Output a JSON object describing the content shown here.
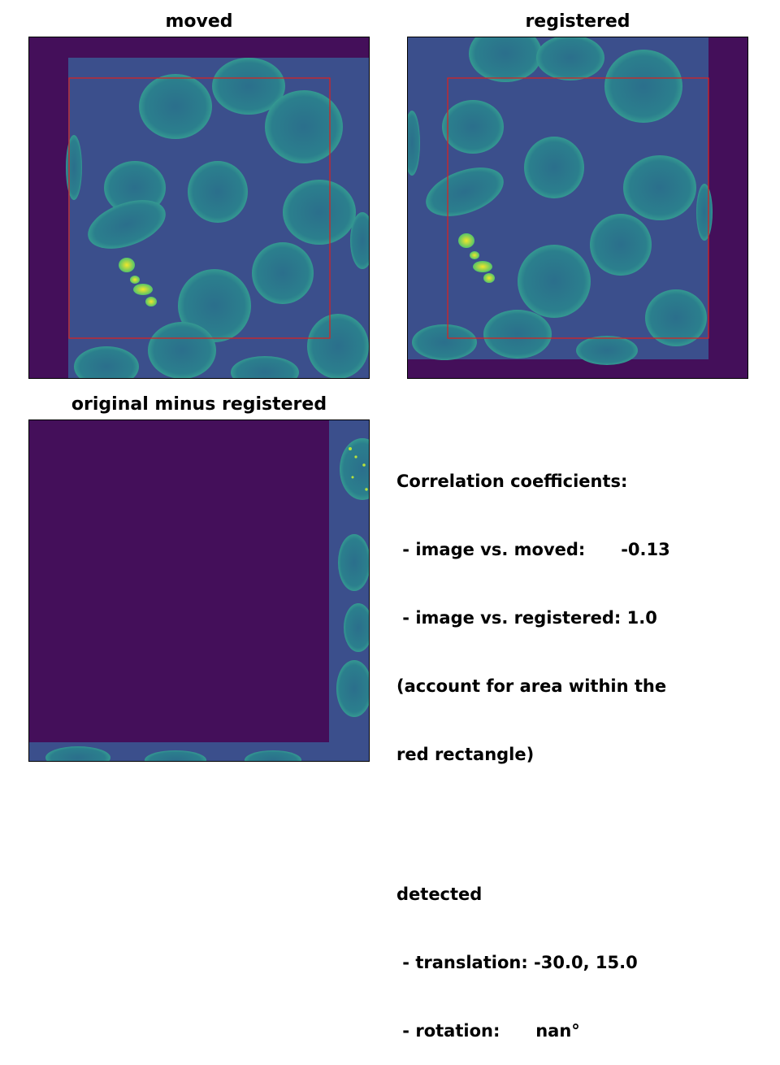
{
  "panels": {
    "moved": {
      "title": "moved"
    },
    "registered": {
      "title": "registered"
    },
    "difference": {
      "title": "original minus registered"
    }
  },
  "info": {
    "corr_heading": "Correlation coefficients:",
    "corr_moved": " - image vs. moved:      -0.13",
    "corr_registered": " - image vs. registered: 1.0",
    "corr_note_1": "(account for area within the",
    "corr_note_2": "red rectangle)",
    "detected_heading": "detected",
    "translation": " - translation: -30.0, 15.0",
    "rotation": " - rotation:      nan°"
  },
  "colors": {
    "background_pad": "#440f5a",
    "image_base": "#3b4f8c",
    "cell_fill": "#2a7b8e",
    "cell_edge": "#35a897",
    "bright_spot": "#b9e33a",
    "roi_rectangle": "#e0201c"
  }
}
